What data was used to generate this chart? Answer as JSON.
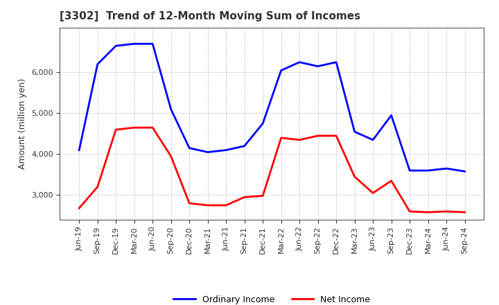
{
  "title": "[3302]  Trend of 12-Month Moving Sum of Incomes",
  "ylabel": "Amount (million yen)",
  "x_labels": [
    "Jun-19",
    "Sep-19",
    "Dec-19",
    "Mar-20",
    "Jun-20",
    "Sep-20",
    "Dec-20",
    "Mar-21",
    "Jun-21",
    "Sep-21",
    "Dec-21",
    "Mar-22",
    "Jun-22",
    "Sep-22",
    "Dec-22",
    "Mar-23",
    "Jun-23",
    "Sep-23",
    "Dec-23",
    "Mar-24",
    "Jun-24",
    "Sep-24"
  ],
  "ordinary_income": [
    4100,
    6200,
    6650,
    6700,
    6700,
    5100,
    4150,
    4050,
    4100,
    4200,
    4750,
    6050,
    6250,
    6150,
    6250,
    4550,
    4350,
    4950,
    3600,
    3600,
    3650,
    3580
  ],
  "net_income": [
    2680,
    3200,
    4600,
    4650,
    4650,
    3950,
    2800,
    2750,
    2750,
    2950,
    2980,
    4400,
    4350,
    4450,
    4450,
    3450,
    3050,
    3350,
    2600,
    2580,
    2600,
    2580
  ],
  "ordinary_color": "#0000FF",
  "net_color": "#FF0000",
  "ylim_min": 2400,
  "ylim_max": 7100,
  "yticks": [
    3000,
    4000,
    5000,
    6000
  ],
  "background_color": "#FFFFFF",
  "plot_bg_color": "#FFFFFF",
  "grid_color": "#AAAAAA",
  "line_width": 2.0,
  "title_fontsize": 11,
  "axis_label_fontsize": 9,
  "tick_fontsize": 8,
  "legend_fontsize": 9
}
